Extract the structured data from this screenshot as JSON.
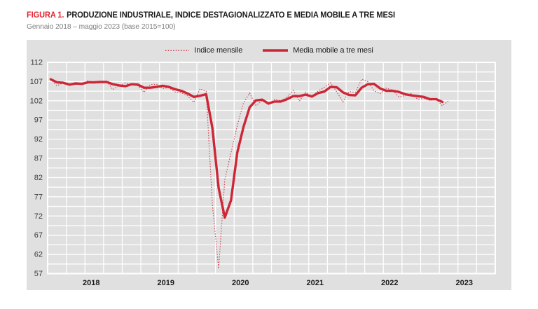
{
  "figure": {
    "label": "FIGURA 1.",
    "title": "PRODUZIONE INDUSTRIALE, INDICE DESTAGIONALIZZATO E MEDIA MOBILE A TRE MESI",
    "subtitle": "Gennaio 2018 – maggio 2023 (base 2015=100)"
  },
  "legend": {
    "monthly_label": "Indice mensile",
    "ma_label": "Media mobile a tre mesi"
  },
  "colors": {
    "figura_red": "#e32430",
    "title_text": "#1a1a1a",
    "subtitle_gray": "#7f7f7f",
    "axis_text": "#3a3a3a",
    "year_text": "#1a1a1a"
  },
  "chart_data": {
    "type": "line",
    "title": "PRODUZIONE INDUSTRIALE, INDICE DESTAGIONALIZZATO E MEDIA MOBILE A TRE MESI",
    "subtitle": "Gennaio 2018 – maggio 2023 (base 2015=100)",
    "x_axis": {
      "tick_labels": [
        "2018",
        "2019",
        "2020",
        "2021",
        "2022",
        "2023"
      ],
      "start": "Gennaio 2018",
      "end": "Maggio 2023",
      "axis_slots": 72,
      "n_points": 65
    },
    "y_axis": {
      "tick_labels": [
        112,
        107,
        102,
        97,
        92,
        87,
        82,
        77,
        72,
        67,
        62,
        57
      ],
      "ylim": [
        57,
        112
      ],
      "gridline_step": 2.5
    },
    "grid": "on",
    "legend_position": "top-center",
    "series": [
      {
        "name": "Indice mensile",
        "style": "dotted",
        "values": [
          107.6,
          105.9,
          106.7,
          106.0,
          106.8,
          106.5,
          107.2,
          106.7,
          106.9,
          107.1,
          104.9,
          106.0,
          106.6,
          106.2,
          105.9,
          104.2,
          106.2,
          106.3,
          105.2,
          105.4,
          104.3,
          104.1,
          103.3,
          101.6,
          105.1,
          104.5,
          75.0,
          58.3,
          81.5,
          88.5,
          95.5,
          101.5,
          104.0,
          100.8,
          102.0,
          101.0,
          102.4,
          102.0,
          102.9,
          104.7,
          101.9,
          104.3,
          103.1,
          104.5,
          105.5,
          106.7,
          104.3,
          101.7,
          104.4,
          104.2,
          107.6,
          107.0,
          104.6,
          103.9,
          105.3,
          104.7,
          103.0,
          103.3,
          103.9,
          102.4,
          102.6,
          102.1,
          102.4,
          100.7,
          102.0
        ]
      },
      {
        "name": "Media mobile a tre mesi",
        "style": "solid",
        "values": [
          107.6,
          106.8,
          106.7,
          106.2,
          106.5,
          106.4,
          106.8,
          106.8,
          106.9,
          106.9,
          106.3,
          106.0,
          105.8,
          106.3,
          106.2,
          105.4,
          105.4,
          105.6,
          105.9,
          105.6,
          105.0,
          104.6,
          103.9,
          103.0,
          103.3,
          103.7,
          94.9,
          79.3,
          71.6,
          76.1,
          88.5,
          95.2,
          100.3,
          102.1,
          102.3,
          101.3,
          101.8,
          101.8,
          102.4,
          103.2,
          103.2,
          103.6,
          103.1,
          104.0,
          104.4,
          105.6,
          105.5,
          104.2,
          103.5,
          103.4,
          105.4,
          106.3,
          106.4,
          105.2,
          104.6,
          104.6,
          104.3,
          103.7,
          103.4,
          103.2,
          103.0,
          102.4,
          102.4,
          101.7,
          null
        ]
      }
    ],
    "colors": {
      "series_red": "#cd2636",
      "plot_background": "#e0e0e0",
      "gridline": "#ffffff"
    }
  }
}
